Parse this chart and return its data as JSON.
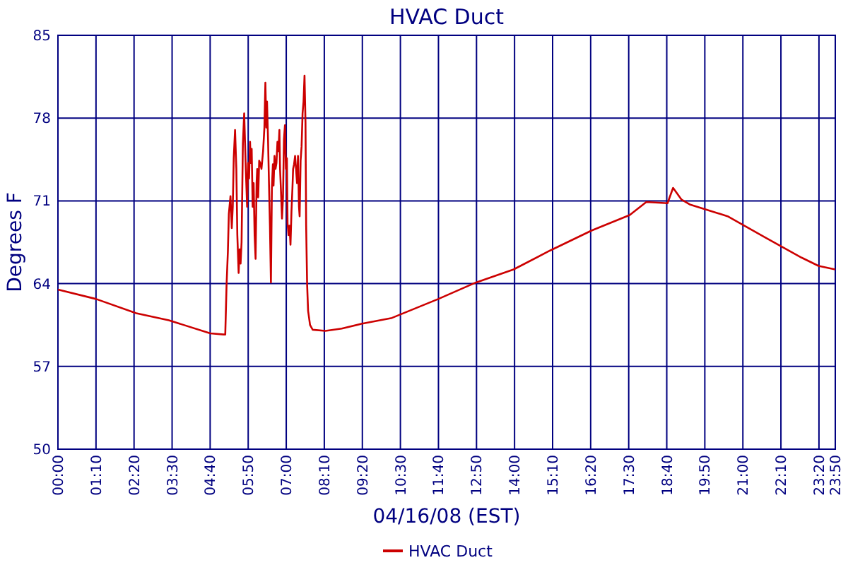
{
  "chart_data": {
    "type": "line",
    "title": "HVAC Duct",
    "xlabel": "04/16/08 (EST)",
    "ylabel": "Degrees F",
    "xlim": [
      0,
      23.8333
    ],
    "xticks": [
      {
        "value": 0,
        "label": "00:00"
      },
      {
        "value": 1.1667,
        "label": "01:10"
      },
      {
        "value": 2.3333,
        "label": "02:20"
      },
      {
        "value": 3.5,
        "label": "03:30"
      },
      {
        "value": 4.6667,
        "label": "04:40"
      },
      {
        "value": 5.8333,
        "label": "05:50"
      },
      {
        "value": 7,
        "label": "07:00"
      },
      {
        "value": 8.1667,
        "label": "08:10"
      },
      {
        "value": 9.3333,
        "label": "09:20"
      },
      {
        "value": 10.5,
        "label": "10:30"
      },
      {
        "value": 11.6667,
        "label": "11:40"
      },
      {
        "value": 12.8333,
        "label": "12:50"
      },
      {
        "value": 14,
        "label": "14:00"
      },
      {
        "value": 15.1667,
        "label": "15:10"
      },
      {
        "value": 16.3333,
        "label": "16:20"
      },
      {
        "value": 17.5,
        "label": "17:30"
      },
      {
        "value": 18.6667,
        "label": "18:40"
      },
      {
        "value": 19.8333,
        "label": "19:50"
      },
      {
        "value": 21,
        "label": "21:00"
      },
      {
        "value": 22.1667,
        "label": "22:10"
      },
      {
        "value": 23.3333,
        "label": "23:20"
      },
      {
        "value": 23.8333,
        "label": "23:50"
      }
    ],
    "ylim": [
      50,
      85
    ],
    "yticks": [
      50,
      57,
      64,
      71,
      78,
      85
    ],
    "grid": true,
    "legend": "bottom",
    "marker": "none",
    "line_style": "solid",
    "series": [
      {
        "name": "HVAC Duct",
        "color": "#cc0000",
        "x": [
          0,
          1.17,
          2.4,
          3.4,
          4.67,
          5.08,
          5.13,
          5.17,
          5.21,
          5.24,
          5.29,
          5.33,
          5.36,
          5.39,
          5.43,
          5.47,
          5.5,
          5.54,
          5.57,
          5.6,
          5.63,
          5.67,
          5.71,
          5.76,
          5.8,
          5.83,
          5.86,
          5.89,
          5.91,
          5.94,
          5.97,
          6,
          6.03,
          6.06,
          6.09,
          6.11,
          6.14,
          6.17,
          6.2,
          6.24,
          6.29,
          6.33,
          6.36,
          6.39,
          6.41,
          6.44,
          6.47,
          6.5,
          6.53,
          6.56,
          6.59,
          6.61,
          6.64,
          6.67,
          6.7,
          6.73,
          6.76,
          6.79,
          6.81,
          6.84,
          6.87,
          6.9,
          6.93,
          6.96,
          6.99,
          7.02,
          7.04,
          7.07,
          7.1,
          7.13,
          7.16,
          7.19,
          7.21,
          7.24,
          7.27,
          7.3,
          7.33,
          7.36,
          7.39,
          7.41,
          7.44,
          7.47,
          7.5,
          7.53,
          7.56,
          7.59,
          7.61,
          7.64,
          7.67,
          7.73,
          7.81,
          8.2,
          8.7,
          9.3,
          10.24,
          11.66,
          12.82,
          13.97,
          15.09,
          16.37,
          17.53,
          18.04,
          18.69,
          18.86,
          19.12,
          19.37,
          20.53,
          21.69,
          22.8,
          23.32,
          23.83
        ],
        "values": [
          63.5,
          62.7,
          61.5,
          60.9,
          59.8,
          59.7,
          59.7,
          63.9,
          66.7,
          69.9,
          71.4,
          68.7,
          70.5,
          74.6,
          77,
          73.7,
          68.1,
          64.9,
          66.9,
          65.7,
          67.5,
          75.8,
          78.4,
          73.7,
          70.5,
          74.2,
          72.9,
          76,
          74.2,
          75.4,
          70.5,
          72.5,
          68.1,
          66.1,
          72.5,
          73.7,
          71.3,
          74.4,
          74.2,
          73.7,
          75.2,
          77.2,
          81,
          77.2,
          79.4,
          76.4,
          72.5,
          68.9,
          64.1,
          72.1,
          74.1,
          72.3,
          74.8,
          73.7,
          74.2,
          76,
          75.2,
          77,
          73.7,
          71.7,
          69.5,
          71.3,
          76.2,
          77.4,
          73.7,
          74.6,
          69.1,
          68.1,
          68.9,
          67.3,
          70.1,
          72.1,
          73.7,
          74.1,
          74.8,
          73.7,
          72.5,
          74.8,
          70.5,
          69.7,
          74.4,
          75.6,
          78.4,
          79.4,
          81.6,
          77.6,
          68.9,
          63.9,
          61.7,
          60.5,
          60.1,
          60,
          60.2,
          60.6,
          61.1,
          62.7,
          64.1,
          65.2,
          66.8,
          68.5,
          69.8,
          70.9,
          70.8,
          72.1,
          71.1,
          70.7,
          69.7,
          67.9,
          66.2,
          65.5,
          65.2
        ]
      }
    ]
  }
}
